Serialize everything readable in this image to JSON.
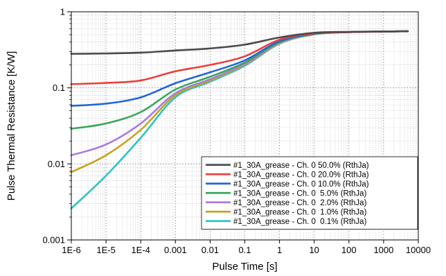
{
  "chart_data": {
    "type": "line",
    "title": "",
    "xlabel": "Pulse Time [s]",
    "ylabel": "Pulse Thermal Resistance [K/W]",
    "xscale": "log",
    "yscale": "log",
    "xlim": [
      1e-06,
      10000
    ],
    "ylim": [
      0.001,
      1
    ],
    "xticks": [
      1e-06,
      1e-05,
      0.0001,
      0.001,
      0.01,
      0.1,
      1,
      10,
      100,
      1000,
      10000
    ],
    "xtick_labels": [
      "1E-6",
      "1E-5",
      "1E-4",
      "0.001",
      "0.01",
      "0.1",
      "1",
      "10",
      "100",
      "1000",
      "10000"
    ],
    "yticks": [
      0.001,
      0.01,
      0.1,
      1
    ],
    "ytick_labels": [
      "0.001",
      "0.01",
      "0.1",
      "1"
    ],
    "grid": true,
    "legend_position": "bottom-right",
    "x": [
      1e-06,
      1e-05,
      0.0001,
      0.001,
      0.01,
      0.1,
      1,
      10,
      100,
      1000,
      5000
    ],
    "series": [
      {
        "name": "#1_30A_grease - Ch. 0 50.0% (RthJa)",
        "color": "#4a4a4a",
        "values": [
          0.28,
          0.283,
          0.29,
          0.31,
          0.33,
          0.37,
          0.46,
          0.53,
          0.545,
          0.55,
          0.555
        ]
      },
      {
        "name": "#1_30A_grease - Ch. 0 20.0% (RthJa)",
        "color": "#e8413c",
        "values": [
          0.112,
          0.116,
          0.125,
          0.165,
          0.2,
          0.26,
          0.43,
          0.52,
          0.54,
          0.55,
          0.555
        ]
      },
      {
        "name": "#1_30A_grease - Ch. 0 10.0% (RthJa)",
        "color": "#2166d9",
        "values": [
          0.058,
          0.062,
          0.075,
          0.115,
          0.16,
          0.23,
          0.41,
          0.515,
          0.54,
          0.55,
          0.555
        ]
      },
      {
        "name": "#1_30A_grease - Ch. 0  5.0% (RthJa)",
        "color": "#3aa657",
        "values": [
          0.029,
          0.034,
          0.048,
          0.095,
          0.14,
          0.215,
          0.4,
          0.51,
          0.54,
          0.55,
          0.555
        ]
      },
      {
        "name": "#1_30A_grease - Ch. 0  2.0% (RthJa)",
        "color": "#a97be0",
        "values": [
          0.013,
          0.018,
          0.034,
          0.085,
          0.13,
          0.205,
          0.39,
          0.51,
          0.54,
          0.55,
          0.555
        ]
      },
      {
        "name": "#1_30A_grease - Ch. 0  1.0% (RthJa)",
        "color": "#c9a21a",
        "values": [
          0.0078,
          0.013,
          0.028,
          0.08,
          0.125,
          0.2,
          0.385,
          0.505,
          0.54,
          0.55,
          0.555
        ]
      },
      {
        "name": "#1_30A_grease - Ch. 0  0.1% (RthJa)",
        "color": "#2ec4c4",
        "values": [
          0.0026,
          0.007,
          0.022,
          0.075,
          0.12,
          0.195,
          0.38,
          0.505,
          0.54,
          0.55,
          0.555
        ]
      }
    ]
  }
}
